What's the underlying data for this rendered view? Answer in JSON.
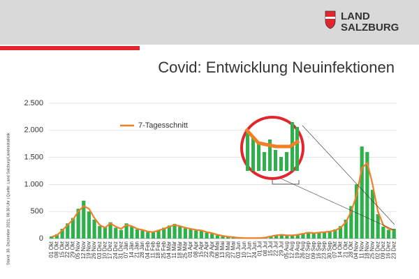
{
  "logo": {
    "line1": "LAND",
    "line2": "SALZBURG"
  },
  "chart_data": {
    "type": "bar",
    "title": "Covid: Entwicklung Neuinfektionen",
    "note": "Stand: 30. Dezember 2021, 08.30 Uhr | Quelle: Land Salzburg/Landesstatistik",
    "categories": [
      "01 Okt",
      "08 Okt",
      "15 Okt",
      "22 Okt",
      "29 Okt",
      "05 Nov",
      "12 Nov",
      "19 Nov",
      "26 Nov",
      "03 Dez",
      "10 Dez",
      "17 Dez",
      "24 Dez",
      "31 Dez",
      "07 Jän",
      "14 Jän",
      "21 Jän",
      "28 Jän",
      "04 Feb",
      "11 Feb",
      "18 Feb",
      "25 Feb",
      "04 Mär",
      "11 Mär",
      "18 Mär",
      "25 Mär",
      "01 Apr",
      "08 Apr",
      "15 Apr",
      "22 Apr",
      "29 Apr",
      "06 Mai",
      "13 Mai",
      "20 Mai",
      "27 Mai",
      "03 Jun",
      "10 Jun",
      "17 Jun",
      "24 Jun",
      "01 Jul",
      "08 Jul",
      "15 Jul",
      "22 Jul",
      "29 Jul",
      "05 Aug",
      "12 Aug",
      "19 Aug",
      "26 Aug",
      "02 Sep",
      "09 Sep",
      "16 Sep",
      "23 Sep",
      "30 Sep",
      "07 Okt",
      "14 Okt",
      "21 Okt",
      "28 Okt",
      "04 Nov",
      "11 Nov",
      "18 Nov",
      "25 Nov",
      "02 Dez",
      "09 Dez",
      "16 Dez",
      "23 Dez"
    ],
    "values": [
      40,
      80,
      180,
      280,
      380,
      550,
      700,
      500,
      350,
      230,
      210,
      300,
      200,
      160,
      280,
      220,
      170,
      150,
      120,
      130,
      160,
      200,
      240,
      270,
      220,
      190,
      170,
      150,
      140,
      110,
      90,
      60,
      45,
      30,
      20,
      12,
      8,
      6,
      7,
      12,
      25,
      50,
      70,
      75,
      55,
      65,
      80,
      100,
      120,
      95,
      115,
      125,
      140,
      170,
      230,
      350,
      600,
      1000,
      1700,
      1600,
      900,
      450,
      220,
      160,
      180
    ],
    "color": "#2eb04b",
    "series": [
      {
        "name": "7-Tagesschnitt",
        "color": "#f07f26",
        "values": [
          30,
          60,
          150,
          250,
          350,
          500,
          600,
          550,
          380,
          250,
          200,
          280,
          220,
          180,
          250,
          230,
          180,
          160,
          130,
          120,
          150,
          180,
          220,
          250,
          230,
          200,
          180,
          160,
          150,
          120,
          100,
          70,
          50,
          35,
          25,
          15,
          10,
          8,
          8,
          10,
          20,
          40,
          60,
          70,
          60,
          60,
          70,
          90,
          110,
          100,
          110,
          120,
          130,
          150,
          200,
          300,
          500,
          800,
          1300,
          1400,
          1000,
          500,
          250,
          180,
          150
        ]
      }
    ],
    "ylim": [
      0,
      2500
    ],
    "yticks": [
      0,
      500,
      {
        "value": 1000,
        "label": "1.000"
      },
      {
        "value": 1500,
        "label": "1.500"
      },
      {
        "value": 2000,
        "label": "2.000"
      },
      {
        "value": 2500,
        "label": "2.500"
      }
    ],
    "grid": true
  }
}
